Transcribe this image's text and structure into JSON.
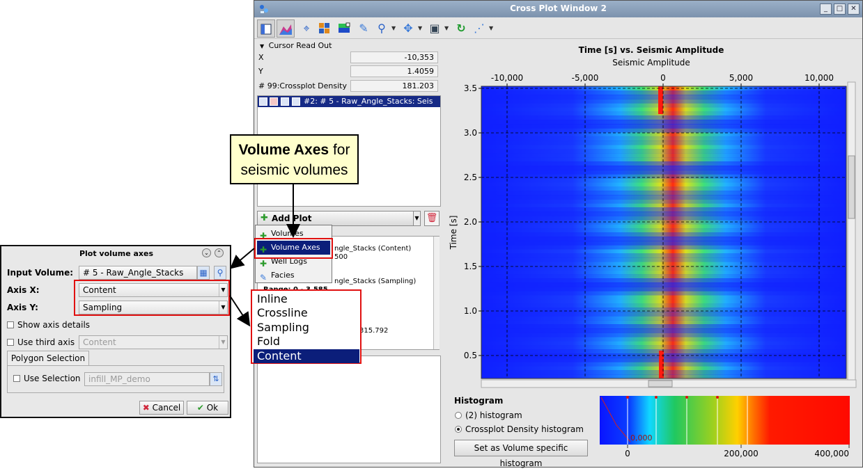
{
  "window": {
    "title": "Cross Plot Window 2"
  },
  "toolbar": {
    "icons": [
      "window-icon",
      "crossplot-icon",
      "crosshair-icon",
      "palette-icon",
      "layers-icon",
      "pencil-icon",
      "zoom-icon",
      "pan-icon",
      "display-icon",
      "refresh-icon",
      "magic-wand-icon"
    ]
  },
  "cursor_readout": {
    "header": "Cursor Read Out",
    "rows": [
      {
        "label": "X",
        "value": "-10,353"
      },
      {
        "label": "Y",
        "value": "1.4059"
      },
      {
        "label": "# 99:Crossplot Density",
        "value": "181.203"
      }
    ]
  },
  "volume_list": {
    "item": "#2: # 5 - Raw_Angle_Stacks: Seis"
  },
  "add_plot": {
    "label": "Add Plot",
    "menu": [
      "Volumes",
      "Volume Axes",
      "Well Logs",
      "Facies"
    ],
    "selected": "Volume Axes"
  },
  "plot_list": {
    "lines": [
      "ngle_Stacks (Content)",
      "500",
      "ngle_Stacks (Sampling)",
      "Range: 0 - 3.585",
      "315.792"
    ]
  },
  "plot": {
    "title": "Time [s] vs. Seismic Amplitude",
    "x_label": "Seismic Amplitude",
    "y_label": "Time [s]",
    "x_ticks": [
      "-10,000",
      "-5,000",
      "0",
      "5,000",
      "10,000"
    ],
    "y_ticks": [
      "3.5",
      "3.0",
      "2.5",
      "2.0",
      "1.5",
      "1.0",
      "0.5"
    ]
  },
  "histogram": {
    "title": "Histogram",
    "options": [
      "(2) histogram",
      "Crossplot Density histogram"
    ],
    "selected": "Crossplot Density histogram",
    "button": "Set as Volume specific histogram",
    "ticks": [
      "0",
      "200,000",
      "400,000"
    ],
    "marker_text": "0,000"
  },
  "dialog": {
    "title": "Plot volume axes",
    "input_volume_label": "Input Volume:",
    "input_volume": "# 5 - Raw_Angle_Stacks",
    "axis_x_label": "Axis X:",
    "axis_x": "Content",
    "axis_y_label": "Axis Y:",
    "axis_y": "Sampling",
    "show_axis_details": "Show axis details",
    "use_third_axis": "Use third axis",
    "third_axis": "Content",
    "polygon_tab": "Polygon Selection",
    "use_selection": "Use Selection",
    "selection_value": "infill_MP_demo",
    "cancel": "Cancel",
    "ok": "Ok"
  },
  "callout": {
    "bold": "Volume Axes",
    "rest_1": "for",
    "rest_2": "seismic volumes"
  },
  "axis_options": {
    "items": [
      "Inline",
      "Crossline",
      "Sampling",
      "Fold",
      "Content"
    ],
    "selected": "Content"
  }
}
